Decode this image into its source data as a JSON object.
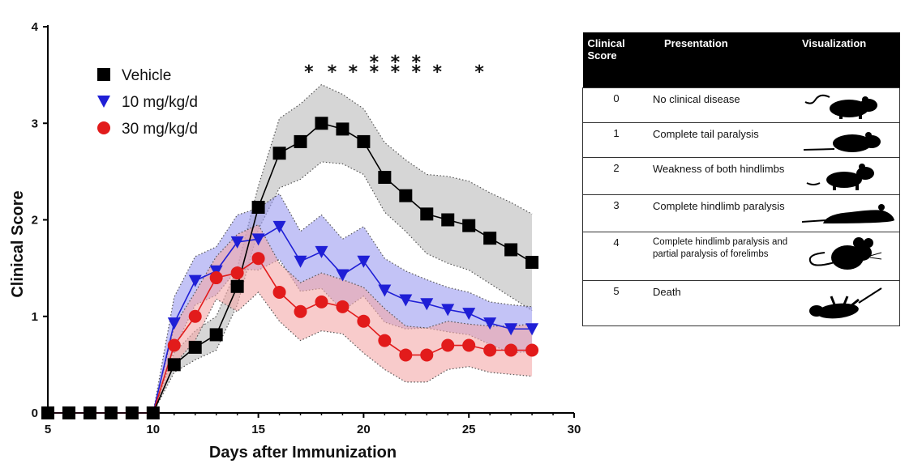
{
  "chart_data": {
    "type": "line",
    "xlabel": "Days after Immunization",
    "ylabel": "Clinical Score",
    "xlim": [
      5,
      30
    ],
    "ylim": [
      0,
      4
    ],
    "xticks": [
      "5",
      "10",
      "15",
      "20",
      "25",
      "30"
    ],
    "yticks": [
      "0",
      "1",
      "2",
      "3",
      "4"
    ],
    "legend_position": "top-left",
    "x": [
      5,
      6,
      7,
      8,
      9,
      10,
      11,
      12,
      13,
      14,
      15,
      16,
      17,
      18,
      19,
      20,
      21,
      22,
      23,
      24,
      25,
      26,
      27,
      28
    ],
    "series": [
      {
        "name": "Vehicle",
        "marker": "square",
        "color": "#000000",
        "band_color": "#c8c8c8",
        "values": [
          0,
          0,
          0,
          0,
          0,
          0,
          0.5,
          0.68,
          0.81,
          1.31,
          2.13,
          2.69,
          2.81,
          3.0,
          2.94,
          2.81,
          2.44,
          2.25,
          2.06,
          2.0,
          1.94,
          1.81,
          1.69,
          1.56
        ],
        "upper": [
          0,
          0,
          0,
          0,
          0,
          0,
          0.62,
          0.85,
          1.0,
          1.5,
          2.35,
          3.05,
          3.2,
          3.4,
          3.3,
          3.15,
          2.8,
          2.62,
          2.47,
          2.45,
          2.4,
          2.28,
          2.18,
          2.06
        ],
        "lower": [
          0,
          0,
          0,
          0,
          0,
          0,
          0.42,
          0.55,
          0.65,
          1.12,
          1.9,
          2.33,
          2.42,
          2.6,
          2.58,
          2.47,
          2.08,
          1.88,
          1.65,
          1.55,
          1.48,
          1.34,
          1.2,
          1.06
        ]
      },
      {
        "name": "10 mg/kg/d",
        "marker": "triangle-down",
        "color": "#1f1fd6",
        "band_color": "#9b9bf0",
        "values": [
          0,
          0,
          0,
          0,
          0,
          0,
          0.93,
          1.37,
          1.47,
          1.77,
          1.8,
          1.93,
          1.57,
          1.67,
          1.43,
          1.57,
          1.27,
          1.17,
          1.13,
          1.07,
          1.03,
          0.93,
          0.87,
          0.87
        ],
        "upper": [
          0,
          0,
          0,
          0,
          0,
          0,
          1.2,
          1.62,
          1.72,
          2.05,
          2.12,
          2.27,
          1.88,
          2.05,
          1.8,
          1.93,
          1.6,
          1.47,
          1.38,
          1.3,
          1.25,
          1.15,
          1.12,
          1.1
        ],
        "lower": [
          0,
          0,
          0,
          0,
          0,
          0,
          0.66,
          1.12,
          1.22,
          1.49,
          1.48,
          1.59,
          1.26,
          1.29,
          1.06,
          1.21,
          0.94,
          0.87,
          0.88,
          0.84,
          0.81,
          0.71,
          0.62,
          0.64
        ]
      },
      {
        "name": "30 mg/kg/d",
        "marker": "circle",
        "color": "#e21b1b",
        "band_color": "#f4a9a9",
        "values": [
          0,
          0,
          0,
          0,
          0,
          0,
          0.7,
          1.0,
          1.4,
          1.45,
          1.6,
          1.25,
          1.05,
          1.15,
          1.1,
          0.95,
          0.75,
          0.6,
          0.6,
          0.7,
          0.7,
          0.65,
          0.65,
          0.65
        ],
        "upper": [
          0,
          0,
          0,
          0,
          0,
          0,
          0.9,
          1.25,
          1.62,
          1.85,
          1.95,
          1.55,
          1.35,
          1.45,
          1.38,
          1.3,
          1.08,
          0.9,
          0.88,
          0.95,
          0.92,
          0.9,
          0.9,
          0.92
        ],
        "lower": [
          0,
          0,
          0,
          0,
          0,
          0,
          0.5,
          0.75,
          1.18,
          1.05,
          1.25,
          0.95,
          0.75,
          0.85,
          0.82,
          0.62,
          0.45,
          0.32,
          0.32,
          0.45,
          0.48,
          0.42,
          0.4,
          0.38
        ]
      }
    ],
    "significance": [
      {
        "x": 17.4,
        "label": "*"
      },
      {
        "x": 18.5,
        "label": "*"
      },
      {
        "x": 19.5,
        "label": "*"
      },
      {
        "x": 20.5,
        "label": "**"
      },
      {
        "x": 21.5,
        "label": "**"
      },
      {
        "x": 22.5,
        "label": "**"
      },
      {
        "x": 23.5,
        "label": "*"
      },
      {
        "x": 25.5,
        "label": "*"
      }
    ]
  },
  "table": {
    "headers": [
      "Clinical Score",
      "Presentation",
      "Visualization"
    ],
    "rows": [
      {
        "score": "0",
        "presentation": "No clinical disease",
        "icon": "mouse-walking-icon"
      },
      {
        "score": "1",
        "presentation": "Complete tail paralysis",
        "icon": "mouse-limp-tail-icon"
      },
      {
        "score": "2",
        "presentation": "Weakness of both hindlimbs",
        "icon": "mouse-weak-hindlimb-icon"
      },
      {
        "score": "3",
        "presentation": "Complete hindlimb paralysis",
        "icon": "mouse-flat-icon"
      },
      {
        "score": "4",
        "presentation": "Complete hindlimb paralysis and partial paralysis of forelimbs",
        "icon": "mouse-sitting-icon"
      },
      {
        "score": "5",
        "presentation": "Death",
        "icon": "mouse-dead-icon"
      }
    ]
  }
}
